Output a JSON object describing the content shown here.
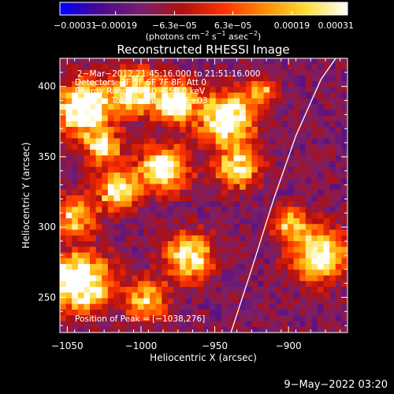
{
  "chart_data": {
    "type": "heatmap",
    "title": "Reconstructed RHESSI Image",
    "xlabel": "Heliocentric X (arcsec)",
    "ylabel": "Heliocentric Y (arcsec)",
    "xlim": [
      -1055,
      -860
    ],
    "ylim": [
      225,
      420
    ],
    "x_ticks": [
      -1050,
      -1000,
      -950,
      -900
    ],
    "x_tick_labels": [
      "−1050",
      "−1000",
      "−950",
      "−900"
    ],
    "y_ticks": [
      250,
      300,
      350,
      400
    ],
    "y_tick_labels": [
      "250",
      "300",
      "350",
      "400"
    ],
    "colorbar": {
      "range": [
        -0.00031,
        0.00031
      ],
      "ticks": [
        -0.00031,
        -0.00019,
        -6.3e-05,
        6.3e-05,
        0.00019,
        0.00031
      ],
      "tick_labels": [
        "−0.00031",
        "−0.00019",
        "−6.3e−05",
        "6.3e−05",
        "0.00019",
        "0.00031"
      ],
      "unit_label_parts": [
        "(photons cm",
        "−2",
        " s",
        "−1",
        " asec",
        "−2",
        ")"
      ],
      "colormap": [
        "#0000ff",
        "#4a0a8f",
        "#7a1f6a",
        "#b01010",
        "#ff3300",
        "#ff8c00",
        "#ffdd33",
        "#ffffff"
      ]
    },
    "annotations": [
      "2−Mar−2012 21:45:16.000 to 21:51:16.000",
      "Detectors: 3F 5F 6F 7F 8F, Att 0",
      "Energy Range: 25.0 − 50.0 keV",
      "Clean     Total counts: 6.11E+03"
    ],
    "peak_label": "Position of Peak = [−1038,276]",
    "peak": [
      -1038,
      276
    ],
    "limb_curve": [
      [
        -939,
        225
      ],
      [
        -925,
        270
      ],
      [
        -910,
        320
      ],
      [
        -895,
        365
      ],
      [
        -878,
        405
      ],
      [
        -868,
        420
      ]
    ]
  },
  "footer": {
    "timestamp": "9−May−2022 03:20"
  }
}
